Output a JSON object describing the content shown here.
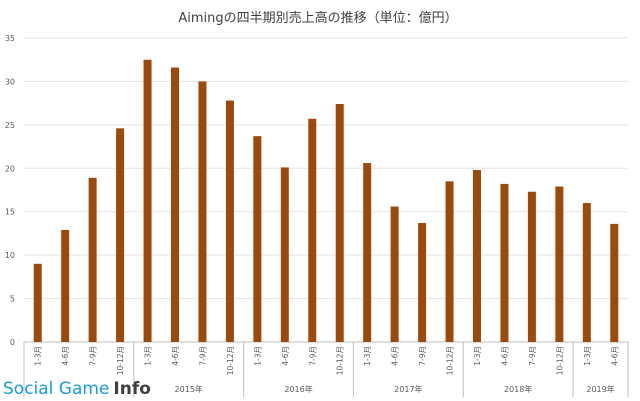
{
  "chart_data": {
    "type": "bar",
    "title": "Aimingの四半期別売上高の推移（単位：億円）",
    "ylim": [
      0,
      35
    ],
    "yticks": [
      0,
      5,
      10,
      15,
      20,
      25,
      30,
      35
    ],
    "grid": true,
    "bar_color": "#9c4a0c",
    "categories": [
      "1-3月",
      "4-6月",
      "7-9月",
      "10-12月",
      "1-3月",
      "4-6月",
      "7-9月",
      "10-12月",
      "1-3月",
      "4-6月",
      "7-9月",
      "10-12月",
      "1-3月",
      "4-6月",
      "7-9月",
      "10-12月",
      "1-3月",
      "4-6月",
      "7-9月",
      "10-12月",
      "1-3月",
      "4-6月"
    ],
    "values": [
      9.0,
      12.9,
      18.9,
      24.6,
      32.5,
      31.6,
      30.0,
      27.8,
      23.7,
      20.1,
      25.7,
      27.4,
      20.6,
      15.6,
      13.7,
      18.5,
      19.8,
      18.2,
      17.3,
      17.9,
      16.0,
      13.6
    ],
    "year_groups": [
      {
        "label": "",
        "count": 4
      },
      {
        "label": "2015年",
        "count": 4
      },
      {
        "label": "2016年",
        "count": 4
      },
      {
        "label": "2017年",
        "count": 4
      },
      {
        "label": "2018年",
        "count": 4
      },
      {
        "label": "2019年",
        "count": 2
      }
    ]
  },
  "watermark": {
    "part1": "Social Game",
    "part2": "Info"
  }
}
